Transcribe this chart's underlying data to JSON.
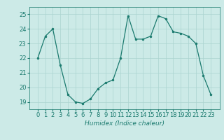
{
  "x": [
    0,
    1,
    2,
    3,
    4,
    5,
    6,
    7,
    8,
    9,
    10,
    11,
    12,
    13,
    14,
    15,
    16,
    17,
    18,
    19,
    20,
    21,
    22,
    23
  ],
  "y": [
    22.0,
    23.5,
    24.0,
    21.5,
    19.5,
    19.0,
    18.9,
    19.2,
    19.9,
    20.3,
    20.5,
    22.0,
    24.9,
    23.3,
    23.3,
    23.5,
    24.9,
    24.7,
    23.8,
    23.7,
    23.5,
    23.0,
    20.8,
    19.5
  ],
  "line_color": "#1a7a6e",
  "marker": "o",
  "marker_size": 2,
  "bg_color": "#cceae7",
  "grid_color": "#aad4d0",
  "xlabel": "Humidex (Indice chaleur)",
  "ylim": [
    18.5,
    25.5
  ],
  "yticks": [
    19,
    20,
    21,
    22,
    23,
    24,
    25
  ],
  "xticks": [
    0,
    1,
    2,
    3,
    4,
    5,
    6,
    7,
    8,
    9,
    10,
    11,
    12,
    13,
    14,
    15,
    16,
    17,
    18,
    19,
    20,
    21,
    22,
    23
  ],
  "label_fontsize": 6.5,
  "tick_fontsize": 6.0
}
